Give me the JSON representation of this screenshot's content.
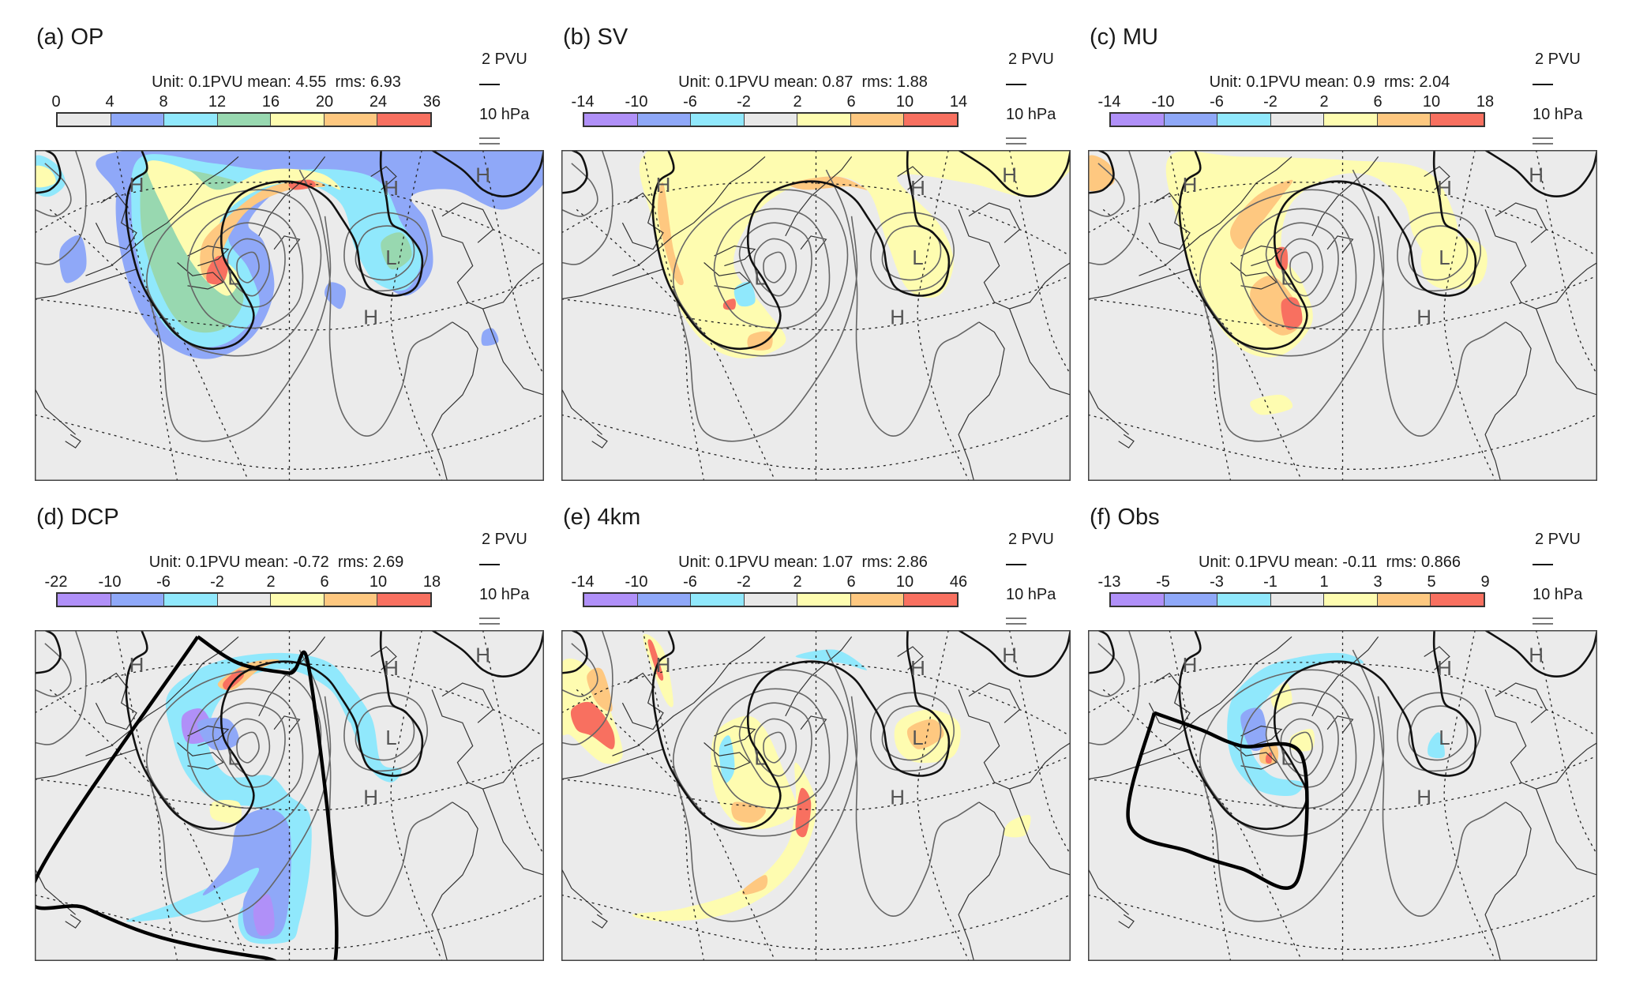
{
  "chart_data": [
    {
      "type": "heatmap",
      "panel_id": "a",
      "title": "(a) OP",
      "stats": {
        "unit": "Unit: 0.1PVU",
        "mean_label": "mean:",
        "mean": "4.55",
        "rms_label": "rms:",
        "rms": "6.93"
      },
      "colorbar": {
        "ticks": [
          "0",
          "4",
          "8",
          "12",
          "16",
          "20",
          "24",
          "36"
        ],
        "colors": [
          "#e8e8e8",
          "#8fa8f8",
          "#90e8fc",
          "#98d8b0",
          "#fefcb0",
          "#fec880",
          "#f87060"
        ]
      },
      "legend": {
        "contour_label": "2 PVU",
        "pressure_label": "10 hPa"
      },
      "box": false
    },
    {
      "type": "heatmap",
      "panel_id": "b",
      "title": "(b) SV",
      "stats": {
        "unit": "Unit: 0.1PVU",
        "mean_label": "mean:",
        "mean": "0.87",
        "rms_label": "rms:",
        "rms": "1.88"
      },
      "colorbar": {
        "ticks": [
          "-14",
          "-10",
          "-6",
          "-2",
          "2",
          "6",
          "10",
          "14"
        ],
        "colors": [
          "#b090f8",
          "#8fa8f8",
          "#90e8fc",
          "#e8e8e8",
          "#fefcb0",
          "#fec880",
          "#f87060"
        ]
      },
      "legend": {
        "contour_label": "2 PVU",
        "pressure_label": "10 hPa"
      },
      "box": false
    },
    {
      "type": "heatmap",
      "panel_id": "c",
      "title": "(c) MU",
      "stats": {
        "unit": "Unit: 0.1PVU",
        "mean_label": "mean:",
        "mean": "0.9",
        "rms_label": "rms:",
        "rms": "2.04"
      },
      "colorbar": {
        "ticks": [
          "-14",
          "-10",
          "-6",
          "-2",
          "2",
          "6",
          "10",
          "18"
        ],
        "colors": [
          "#b090f8",
          "#8fa8f8",
          "#90e8fc",
          "#e8e8e8",
          "#fefcb0",
          "#fec880",
          "#f87060"
        ]
      },
      "legend": {
        "contour_label": "2 PVU",
        "pressure_label": "10 hPa"
      },
      "box": false
    },
    {
      "type": "heatmap",
      "panel_id": "d",
      "title": "(d) DCP",
      "stats": {
        "unit": "Unit: 0.1PVU",
        "mean_label": "mean:",
        "mean": "-0.72",
        "rms_label": "rms:",
        "rms": "2.69"
      },
      "colorbar": {
        "ticks": [
          "-22",
          "-10",
          "-6",
          "-2",
          "2",
          "6",
          "10",
          "18"
        ],
        "colors": [
          "#b090f8",
          "#8fa8f8",
          "#90e8fc",
          "#e8e8e8",
          "#fefcb0",
          "#fec880",
          "#f87060"
        ]
      },
      "legend": {
        "contour_label": "2 PVU",
        "pressure_label": "10 hPa"
      },
      "box": "large"
    },
    {
      "type": "heatmap",
      "panel_id": "e",
      "title": "(e) 4km",
      "stats": {
        "unit": "Unit: 0.1PVU",
        "mean_label": "mean:",
        "mean": "1.07",
        "rms_label": "rms:",
        "rms": "2.86"
      },
      "colorbar": {
        "ticks": [
          "-14",
          "-10",
          "-6",
          "-2",
          "2",
          "6",
          "10",
          "46"
        ],
        "colors": [
          "#b090f8",
          "#8fa8f8",
          "#90e8fc",
          "#e8e8e8",
          "#fefcb0",
          "#fec880",
          "#f87060"
        ]
      },
      "legend": {
        "contour_label": "2 PVU",
        "pressure_label": "10 hPa"
      },
      "box": false
    },
    {
      "type": "heatmap",
      "panel_id": "f",
      "title": "(f) Obs",
      "stats": {
        "unit": "Unit: 0.1PVU",
        "mean_label": "mean:",
        "mean": "-0.11",
        "rms_label": "rms:",
        "rms": "0.866"
      },
      "colorbar": {
        "ticks": [
          "-13",
          "-5",
          "-3",
          "-1",
          "1",
          "3",
          "5",
          "9"
        ],
        "colors": [
          "#b090f8",
          "#8fa8f8",
          "#90e8fc",
          "#e8e8e8",
          "#fefcb0",
          "#fec880",
          "#f87060"
        ]
      },
      "legend": {
        "contour_label": "2 PVU",
        "pressure_label": "10 hPa"
      },
      "box": "small"
    }
  ],
  "map_labels": {
    "high": "H",
    "low": "L"
  },
  "colors": {
    "map_background": "#ebebeb",
    "coast": "#333333",
    "pressure_contour": "#666666",
    "pv_contour": "#111111"
  }
}
